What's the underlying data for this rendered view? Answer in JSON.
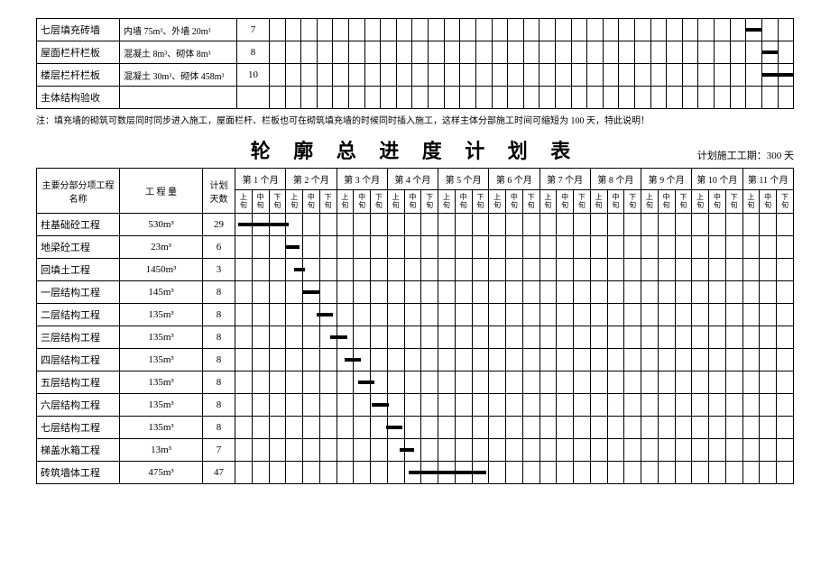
{
  "top_table": {
    "gantt_cols": 33,
    "rows": [
      {
        "name": "七层填充砖墙",
        "qty": "内墙 75m³、外墙 20m³",
        "days": "7",
        "bar_start_pct": 91,
        "bar_width_pct": 3
      },
      {
        "name": "屋面栏杆栏板",
        "qty": "混凝土 8m³、砌体 8m³",
        "days": "8",
        "bar_start_pct": 94,
        "bar_width_pct": 3
      },
      {
        "name": "楼层栏杆栏板",
        "qty": "混凝土 30m³、砌体 458m³",
        "days": "10",
        "bar_start_pct": 94,
        "bar_width_pct": 6
      },
      {
        "name": "主体结构验收",
        "qty": "",
        "days": "",
        "bar_start_pct": null,
        "bar_width_pct": null
      }
    ]
  },
  "note": "注：填充墙的砌筑可数层同时同步进入施工，屋面栏杆、栏板也可在砌筑填充墙的时候同时插入施工，这样主体分部施工时间可缩短为 100 天，特此说明！",
  "title": "轮 廓 总 进 度 计 划 表",
  "period": "计划施工工期：300 天",
  "main_table": {
    "header": {
      "name": "主要分部分项工程名称",
      "qty": "工 程 量",
      "days": "计划天数",
      "months": [
        "第 1 个月",
        "第 2 个月",
        "第 3 个月",
        "第 4 个月",
        "第 5 个月",
        "第 6 个月",
        "第 7 个月",
        "第 8 个月",
        "第 9 个月",
        "第 10 个月",
        "第 11 个月"
      ],
      "sub": [
        "上旬",
        "中旬",
        "下旬"
      ]
    },
    "gantt_cols": 33,
    "rows": [
      {
        "name": "柱基础砼工程",
        "qty": "530m³",
        "days": "29",
        "bar_start_pct": 0.5,
        "bar_width_pct": 9
      },
      {
        "name": "地梁砼工程",
        "qty": "23m³",
        "days": "6",
        "bar_start_pct": 9,
        "bar_width_pct": 2.5
      },
      {
        "name": "回填土工程",
        "qty": "1450m³",
        "days": "3",
        "bar_start_pct": 10.5,
        "bar_width_pct": 2
      },
      {
        "name": "一层结构工程",
        "qty": "145m³",
        "days": "8",
        "bar_start_pct": 12,
        "bar_width_pct": 3
      },
      {
        "name": "二层结构工程",
        "qty": "135m³",
        "days": "8",
        "bar_start_pct": 14.5,
        "bar_width_pct": 3
      },
      {
        "name": "三层结构工程",
        "qty": "135m³",
        "days": "8",
        "bar_start_pct": 17,
        "bar_width_pct": 3
      },
      {
        "name": "四层结构工程",
        "qty": "135m³",
        "days": "8",
        "bar_start_pct": 19.5,
        "bar_width_pct": 3
      },
      {
        "name": "五层结构工程",
        "qty": "135m³",
        "days": "8",
        "bar_start_pct": 22,
        "bar_width_pct": 3
      },
      {
        "name": "六层结构工程",
        "qty": "135m³",
        "days": "8",
        "bar_start_pct": 24.5,
        "bar_width_pct": 3
      },
      {
        "name": "七层结构工程",
        "qty": "135m³",
        "days": "8",
        "bar_start_pct": 27,
        "bar_width_pct": 3
      },
      {
        "name": "梯盖水箱工程",
        "qty": "13m³",
        "days": "7",
        "bar_start_pct": 29.5,
        "bar_width_pct": 2.5
      },
      {
        "name": "砖筑墙体工程",
        "qty": "475m³",
        "days": "47",
        "bar_start_pct": 31,
        "bar_width_pct": 14
      }
    ]
  }
}
